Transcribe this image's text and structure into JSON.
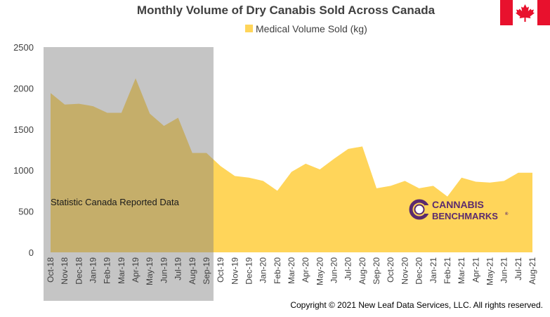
{
  "colors": {
    "area": "#FFD55A",
    "shade": "#7f7f7f",
    "flag_red": "#E8112D",
    "brand_purple": "#5B2A6E"
  },
  "icons": {
    "flag": "canada-flag-icon",
    "logo": "cannabis-benchmarks-logo"
  },
  "chart_data": {
    "type": "area",
    "title": "Monthly Volume of Dry Canabis Sold Across Canada",
    "legend": {
      "entries": [
        "Medical Volume Sold (kg)"
      ],
      "placement": "top-center"
    },
    "xlabel": "",
    "ylabel": "",
    "ylim": [
      0,
      2500
    ],
    "yticks": [
      0,
      500,
      1000,
      1500,
      2000,
      2500
    ],
    "grid": false,
    "categories": [
      "Oct-18",
      "Nov-18",
      "Dec-18",
      "Jan-19",
      "Feb-19",
      "Mar-19",
      "Apr-19",
      "May-19",
      "Jun-19",
      "Jul-19",
      "Aug-19",
      "Sep-19",
      "Oct-19",
      "Nov-19",
      "Dec-19",
      "Jan-20",
      "Feb-20",
      "Mar-20",
      "Apr-20",
      "May-20",
      "Jun-20",
      "Jul-20",
      "Aug-20",
      "Sep-20",
      "Oct-20",
      "Nov-20",
      "Dec-20",
      "Jan-21",
      "Feb-21",
      "Mar-21",
      "Apr-21",
      "May-21",
      "Jun-21",
      "Jul-21",
      "Aug-21"
    ],
    "series": [
      {
        "name": "Medical Volume Sold (kg)",
        "values": [
          1940,
          1800,
          1810,
          1780,
          1700,
          1700,
          2120,
          1690,
          1540,
          1640,
          1210,
          1210,
          1050,
          930,
          910,
          870,
          750,
          980,
          1080,
          1010,
          1140,
          1260,
          1290,
          780,
          810,
          870,
          780,
          810,
          680,
          910,
          860,
          850,
          870,
          970,
          970
        ]
      }
    ],
    "shaded_region": {
      "from": "Oct-18",
      "to": "Sep-19",
      "label": "Statistic Canada Reported Data"
    }
  },
  "logo": {
    "line1": "CANNABIS",
    "line2": "BENCHMARKS",
    "mark": "®"
  },
  "copyright": "Copyright © 2021 New Leaf Data Services, LLC. All rights reserved."
}
